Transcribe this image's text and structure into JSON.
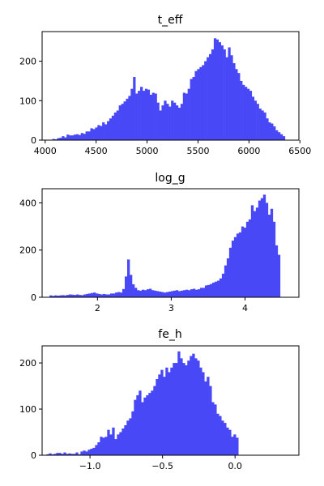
{
  "chart_data": [
    {
      "type": "bar",
      "title": "t_eff",
      "xlabel": "",
      "ylabel": "",
      "xlim": [
        3970,
        6490
      ],
      "ylim": [
        0,
        275
      ],
      "xticks": [
        4000,
        4500,
        5000,
        5500,
        6000,
        6500
      ],
      "yticks": [
        0,
        100,
        200
      ],
      "xtick_labels": [
        "4000",
        "4500",
        "5000",
        "5500",
        "6000",
        "6500"
      ],
      "ytick_labels": [
        "0",
        "100",
        "200"
      ],
      "color": "#4848f7",
      "bin_start": 4070,
      "bin_width": 23.3,
      "values": [
        3,
        2,
        5,
        6,
        10,
        7,
        14,
        12,
        12,
        14,
        15,
        13,
        18,
        16,
        22,
        22,
        30,
        28,
        32,
        38,
        36,
        45,
        40,
        48,
        55,
        62,
        70,
        75,
        88,
        92,
        98,
        105,
        112,
        130,
        160,
        118,
        125,
        135,
        125,
        130,
        128,
        115,
        120,
        118,
        95,
        75,
        88,
        100,
        92,
        85,
        100,
        95,
        88,
        82,
        92,
        120,
        118,
        130,
        155,
        160,
        175,
        180,
        185,
        190,
        200,
        210,
        218,
        230,
        258,
        255,
        248,
        240,
        230,
        210,
        235,
        215,
        195,
        180,
        170,
        150,
        140,
        135,
        130,
        125,
        110,
        100,
        92,
        80,
        75,
        70,
        55,
        45,
        42,
        35,
        25,
        20,
        15,
        10
      ]
    },
    {
      "type": "bar",
      "title": "log_g",
      "xlabel": "",
      "ylabel": "",
      "xlim": [
        1.25,
        4.73
      ],
      "ylim": [
        0,
        460
      ],
      "xticks": [
        2,
        3,
        4
      ],
      "yticks": [
        0,
        200,
        400
      ],
      "xtick_labels": [
        "2",
        "3",
        "4"
      ],
      "ytick_labels": [
        "0",
        "200",
        "400"
      ],
      "color": "#4848f7",
      "bin_start": 1.35,
      "bin_width": 0.0329,
      "values": [
        8,
        6,
        8,
        7,
        8,
        9,
        8,
        10,
        12,
        11,
        10,
        12,
        10,
        9,
        12,
        14,
        16,
        18,
        20,
        16,
        14,
        12,
        14,
        12,
        12,
        16,
        16,
        20,
        22,
        20,
        35,
        88,
        160,
        95,
        55,
        40,
        30,
        28,
        32,
        30,
        34,
        36,
        30,
        28,
        26,
        24,
        22,
        20,
        22,
        24,
        26,
        28,
        30,
        26,
        28,
        30,
        32,
        30,
        34,
        36,
        32,
        34,
        40,
        40,
        50,
        52,
        56,
        62,
        66,
        70,
        80,
        100,
        135,
        165,
        210,
        240,
        255,
        270,
        275,
        300,
        295,
        320,
        330,
        390,
        365,
        380,
        410,
        420,
        435,
        400,
        350,
        375,
        320,
        220,
        180
      ]
    },
    {
      "type": "bar",
      "title": "fe_h",
      "xlabel": "",
      "ylabel": "",
      "xlim": [
        -1.33,
        0.44
      ],
      "ylim": [
        0,
        237
      ],
      "xticks": [
        -1.0,
        -0.5,
        0.0
      ],
      "yticks": [
        0,
        100,
        200
      ],
      "xtick_labels": [
        "−1.0",
        "−0.5",
        "0.0"
      ],
      "ytick_labels": [
        "0",
        "100",
        "200"
      ],
      "color": "#4848f7",
      "bin_start": -1.3,
      "bin_width": 0.01674,
      "values": [
        2,
        4,
        2,
        3,
        5,
        5,
        3,
        6,
        3,
        4,
        3,
        3,
        6,
        2,
        8,
        10,
        8,
        12,
        14,
        16,
        22,
        28,
        40,
        38,
        40,
        55,
        45,
        60,
        35,
        45,
        50,
        58,
        65,
        75,
        80,
        95,
        120,
        130,
        140,
        115,
        125,
        130,
        135,
        140,
        150,
        165,
        175,
        185,
        170,
        190,
        180,
        190,
        200,
        200,
        225,
        210,
        200,
        195,
        205,
        215,
        220,
        210,
        205,
        190,
        180,
        160,
        170,
        150,
        115,
        110,
        90,
        85,
        75,
        70,
        60,
        55,
        40,
        45,
        38
      ]
    }
  ]
}
